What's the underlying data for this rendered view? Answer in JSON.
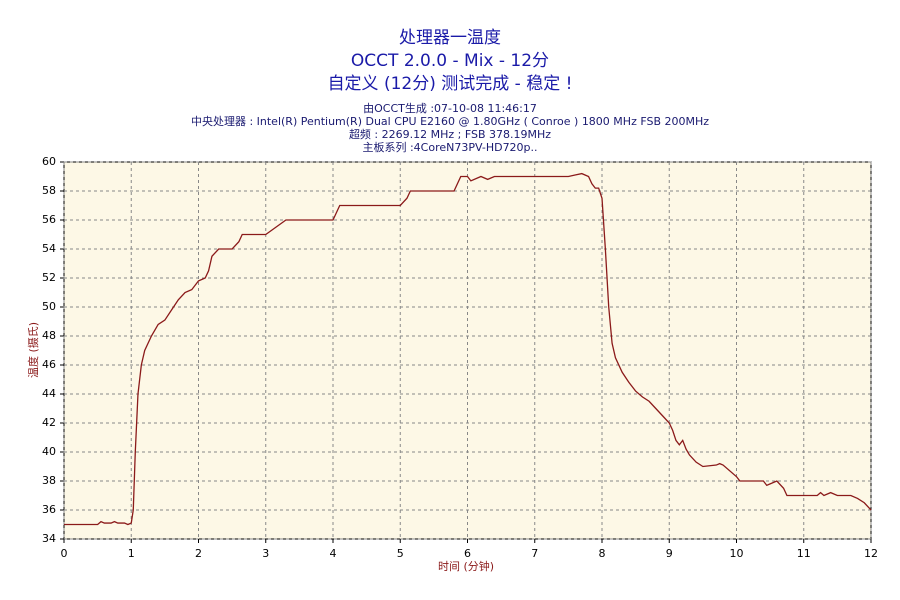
{
  "chart_data": {
    "type": "line",
    "titles": [
      "处理器一温度",
      "OCCT 2.0.0 - Mix - 12分",
      "自定义 (12分) 测试完成 - 稳定 !"
    ],
    "info": [
      "由OCCT生成 :07-10-08 11:46:17",
      "中央处理器 : Intel(R) Pentium(R) Dual CPU E2160 @ 1.80GHz ( Conroe ) 1800 MHz FSB 200MHz",
      "超频 : 2269.12 MHz ; FSB 378.19MHz",
      "主板系列 :4CoreN73PV-HD720p.."
    ],
    "x_label": "时间 (分钟)",
    "y_label": "温度 (摄氏)",
    "x": [
      0,
      0.5,
      0.55,
      0.6,
      0.7,
      0.75,
      0.8,
      0.9,
      0.95,
      1.0,
      1.03,
      1.06,
      1.1,
      1.15,
      1.2,
      1.3,
      1.4,
      1.5,
      1.6,
      1.7,
      1.8,
      1.9,
      2.0,
      2.1,
      2.15,
      2.2,
      2.3,
      2.5,
      2.6,
      2.65,
      3.0,
      3.15,
      3.3,
      4.0,
      4.05,
      4.1,
      5.0,
      5.1,
      5.15,
      5.8,
      5.85,
      5.9,
      6.0,
      6.05,
      6.2,
      6.3,
      6.4,
      7.5,
      7.6,
      7.7,
      7.8,
      7.85,
      7.9,
      7.95,
      8.0,
      8.05,
      8.1,
      8.15,
      8.2,
      8.3,
      8.4,
      8.5,
      8.6,
      8.7,
      8.8,
      8.9,
      9.0,
      9.05,
      9.1,
      9.15,
      9.2,
      9.25,
      9.3,
      9.4,
      9.5,
      9.7,
      9.75,
      9.8,
      10.0,
      10.05,
      10.4,
      10.45,
      10.5,
      10.6,
      10.7,
      10.75,
      11.2,
      11.25,
      11.3,
      11.4,
      11.5,
      11.7,
      11.8,
      11.9,
      12.0
    ],
    "values": [
      35,
      35,
      35.2,
      35.1,
      35.1,
      35.2,
      35.1,
      35.1,
      35,
      35.1,
      36,
      40,
      44,
      46,
      47,
      48,
      48.8,
      49.1,
      49.8,
      50.5,
      51,
      51.2,
      51.8,
      52,
      52.5,
      53.5,
      54,
      54,
      54.5,
      55,
      55,
      55.5,
      56,
      56,
      56.5,
      57,
      57,
      57.5,
      58,
      58,
      58.5,
      59,
      59,
      58.7,
      59,
      58.8,
      59,
      59,
      59.1,
      59.2,
      59,
      58.5,
      58.2,
      58.2,
      57.5,
      54,
      50,
      47.5,
      46.5,
      45.5,
      44.8,
      44.2,
      43.8,
      43.5,
      43,
      42.5,
      42,
      41.5,
      40.8,
      40.5,
      40.8,
      40.2,
      39.8,
      39.3,
      39,
      39.1,
      39.2,
      39.1,
      38.3,
      38,
      38,
      37.7,
      37.8,
      38,
      37.5,
      37,
      37,
      37.2,
      37,
      37.2,
      37,
      37,
      36.8,
      36.5,
      36
    ],
    "color": "#8b1a1a",
    "xlim": [
      0,
      12
    ],
    "xticks": [
      0,
      1,
      2,
      3,
      4,
      5,
      6,
      7,
      8,
      9,
      10,
      11,
      12
    ],
    "ylim": [
      34,
      60
    ],
    "yticks": [
      34,
      36,
      38,
      40,
      42,
      44,
      46,
      48,
      50,
      52,
      54,
      56,
      58,
      60
    ],
    "grid": true
  }
}
